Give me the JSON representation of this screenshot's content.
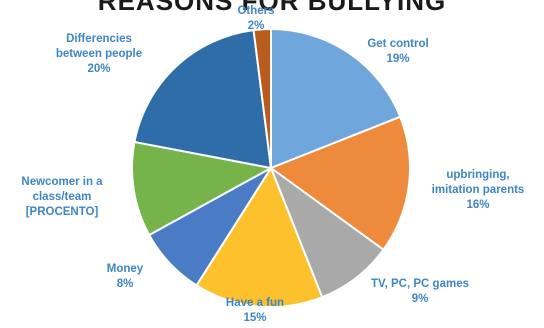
{
  "chart_data": {
    "type": "pie",
    "title": "REASONS FOR BULLYING",
    "categories": [
      "Get control",
      "upbringing,\nimitation parents",
      "TV, PC, PC games",
      "Have a fun",
      "Money",
      "Newcomer in a\nclass/team\n[PROCENTO]",
      "Differencies\nbetween people",
      "Others"
    ],
    "values": [
      19,
      16,
      9,
      15,
      8,
      11,
      20,
      2
    ],
    "value_labels": [
      "19%",
      "16%",
      "9%",
      "15%",
      "8%",
      "",
      "20%",
      "2%"
    ],
    "colors": [
      "#6fa6dc",
      "#ee8a3c",
      "#a9a9a9",
      "#fdc12e",
      "#4a7cc6",
      "#76b34a",
      "#2e6da8",
      "#b95d1e"
    ],
    "start_angle": "12 o'clock, clockwise",
    "label_color": "#3f86c6"
  }
}
